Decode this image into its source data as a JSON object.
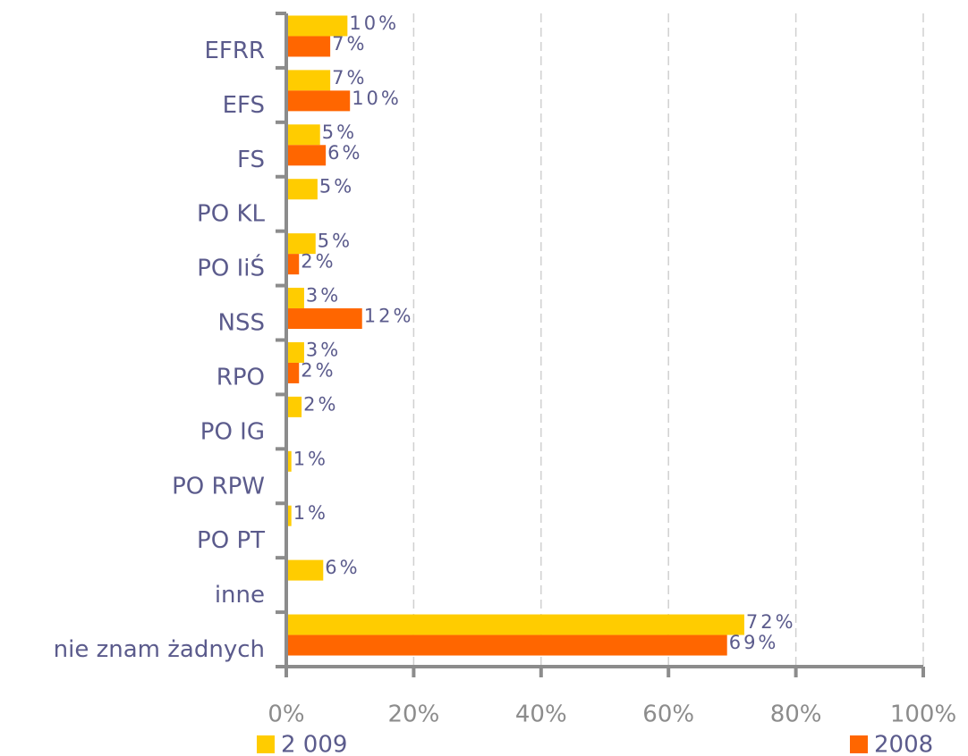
{
  "chart_data": {
    "type": "barh",
    "categories": [
      "EFRR",
      "EFS",
      "FS",
      "PO KL",
      "PO IiŚ",
      "NSS",
      "RPO",
      "PO IG",
      "PO RPW",
      "PO PT",
      "inne",
      "nie znam żadnych"
    ],
    "series": [
      {
        "name": "2 009",
        "color": "#ffcc00",
        "values": [
          9.6,
          6.9,
          5.3,
          4.9,
          4.6,
          2.8,
          2.8,
          2.4,
          0.8,
          0.8,
          5.8,
          71.9
        ],
        "value_labels": [
          "10%",
          "7%",
          "5%",
          "5%",
          "5%",
          "3%",
          "3%",
          "2%",
          "1%",
          "1%",
          "6%",
          "72%"
        ]
      },
      {
        "name": "2008",
        "color": "#ff6600",
        "values": [
          6.9,
          10.0,
          6.2,
          null,
          2.0,
          11.9,
          2.0,
          null,
          null,
          null,
          null,
          69.2
        ],
        "value_labels": [
          "7%",
          "10%",
          "6%",
          null,
          "2%",
          "12%",
          "2%",
          null,
          null,
          null,
          null,
          "69%"
        ]
      }
    ],
    "xlim": [
      0,
      100
    ],
    "xticks": [
      {
        "value": 0,
        "label": "0%"
      },
      {
        "value": 20,
        "label": "20%"
      },
      {
        "value": 40,
        "label": "40%"
      },
      {
        "value": 60,
        "label": "60%"
      },
      {
        "value": 80,
        "label": "80%"
      },
      {
        "value": 100,
        "label": "100%"
      }
    ],
    "grid": true
  }
}
